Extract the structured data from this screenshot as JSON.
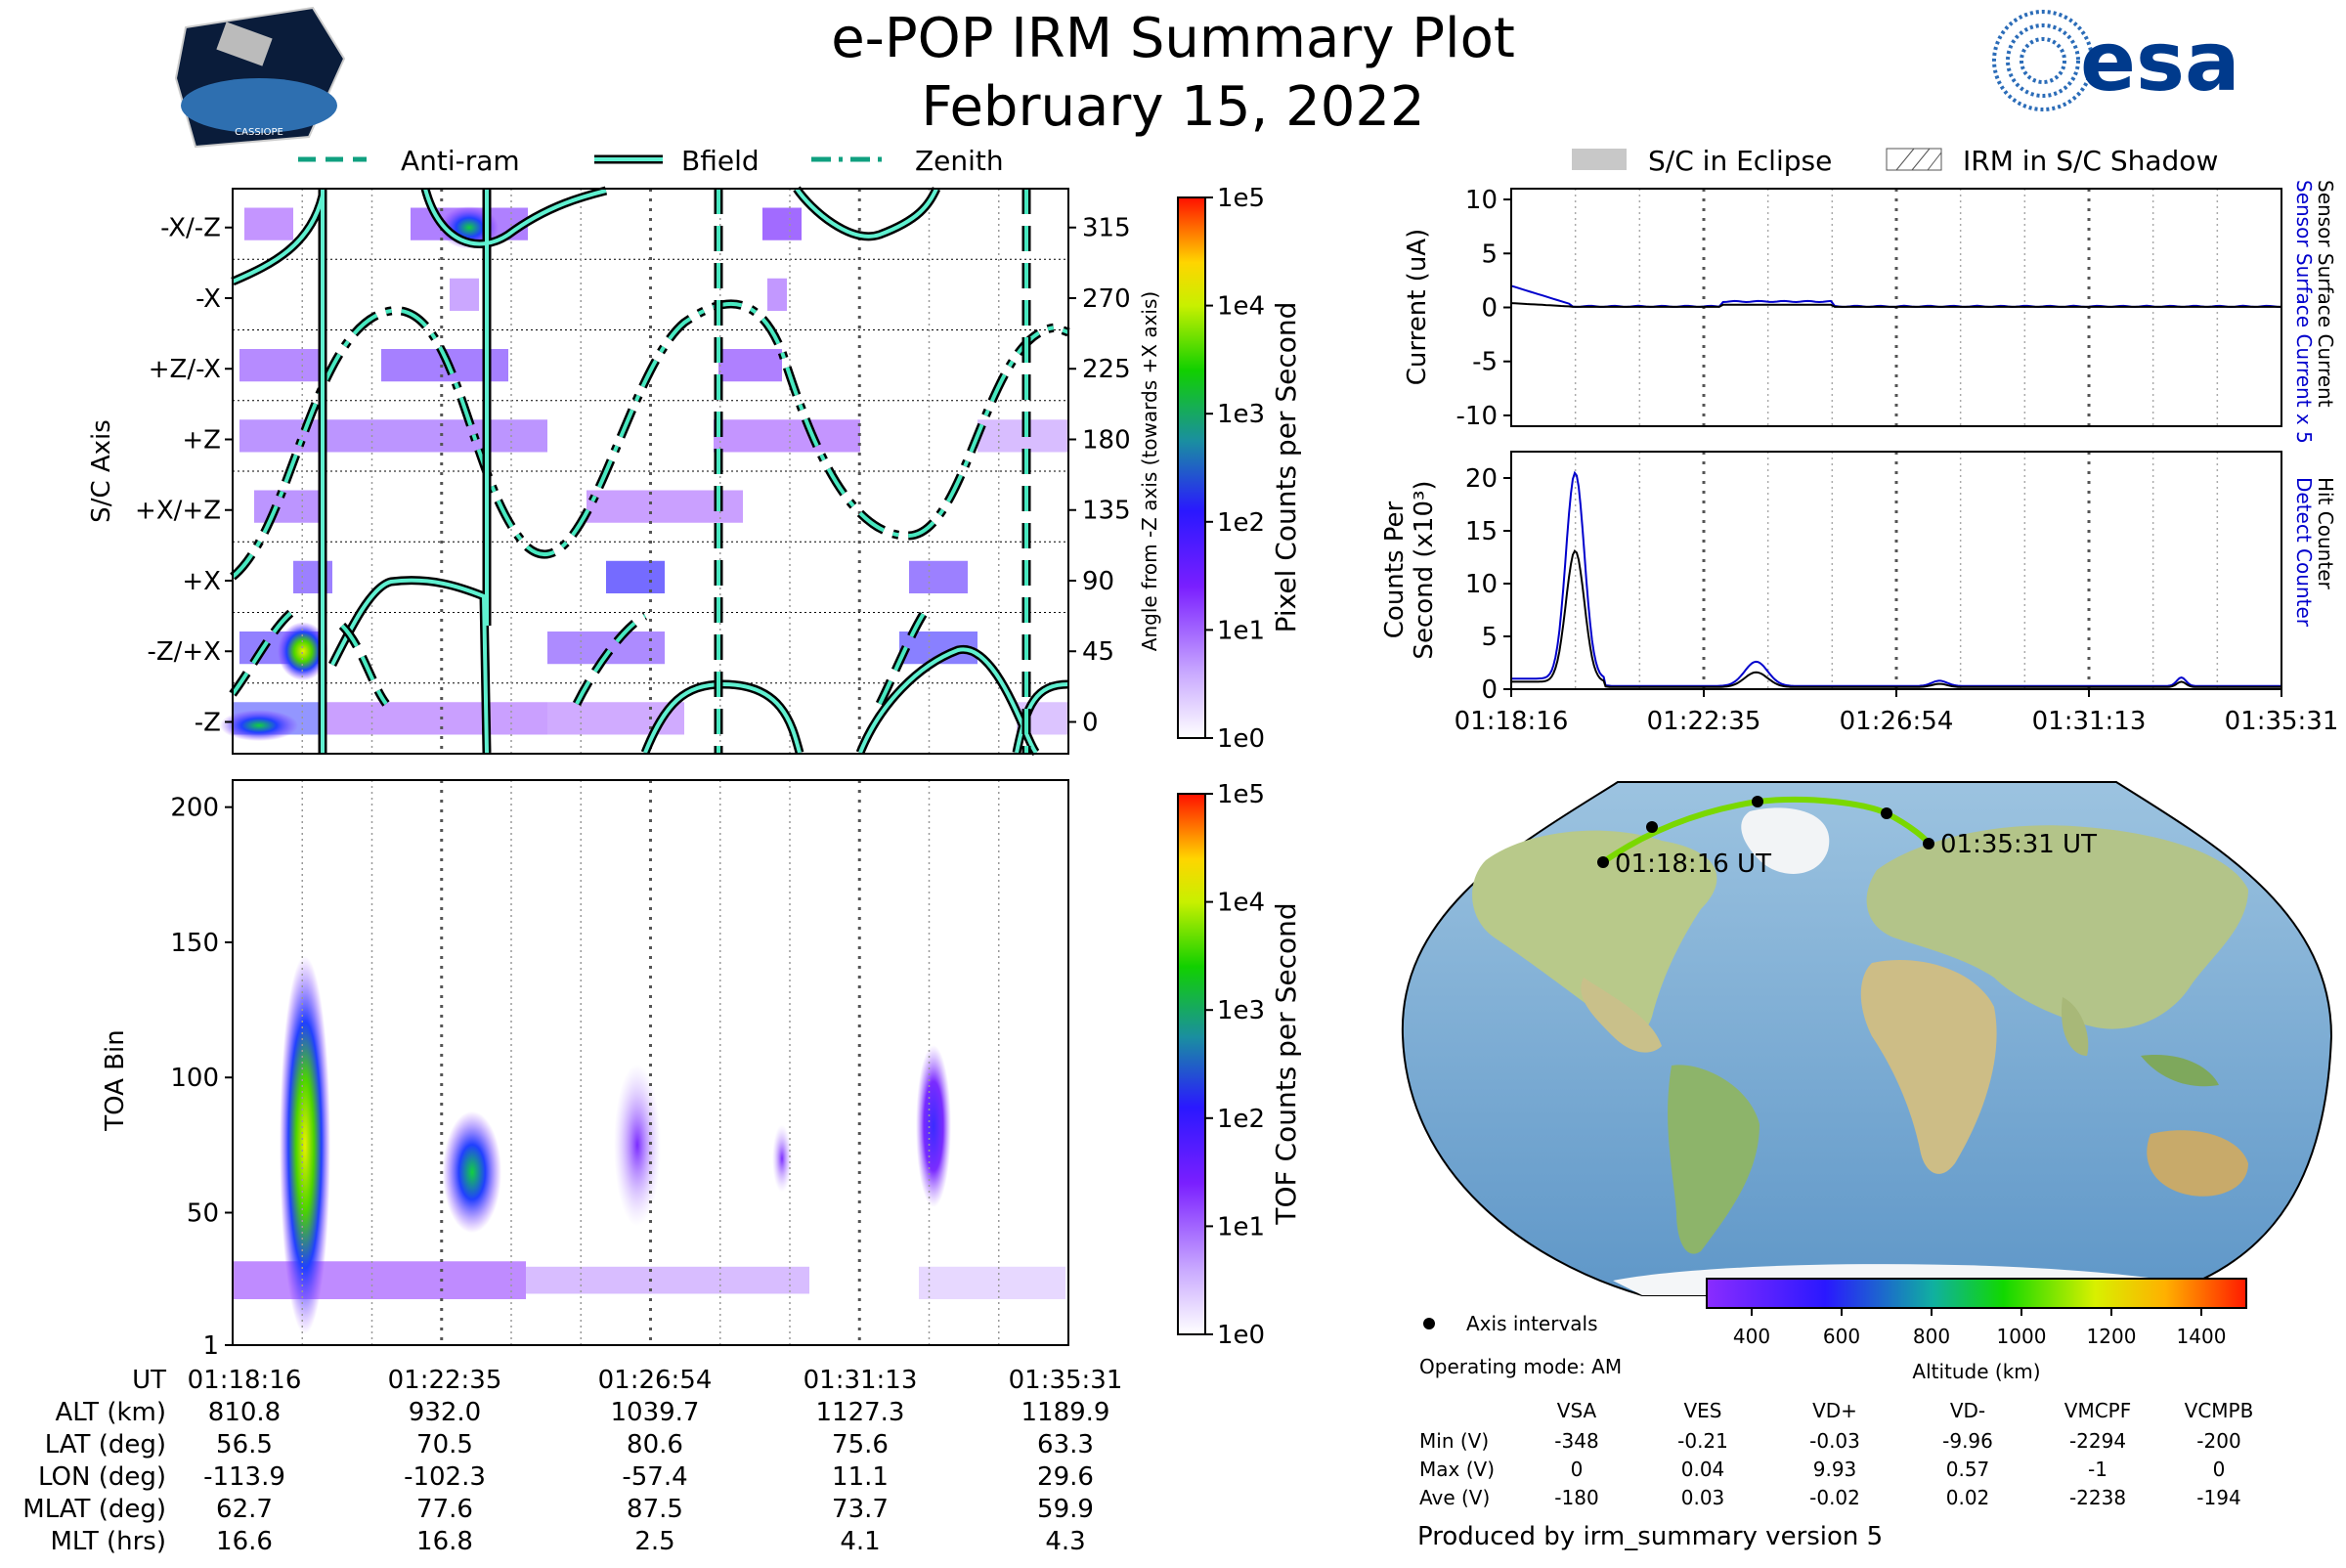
{
  "header": {
    "title": "e-POP IRM Summary Plot",
    "date": "February 15, 2022",
    "left_logo_text": "CASSIOPE",
    "right_logo_text": "esa"
  },
  "legend_top_left": [
    "Anti-ram",
    "Bfield",
    "Zenith"
  ],
  "legend_top_right": [
    "S/C in Eclipse",
    "IRM in S/C Shadow"
  ],
  "times": [
    "01:18:16",
    "01:22:35",
    "01:26:54",
    "01:31:13",
    "01:35:31"
  ],
  "chart_data": [
    {
      "id": "sc_axis_panel",
      "type": "heatmap",
      "ylabel": "S/C Axis",
      "y_categories": [
        "-X/-Z",
        "-X",
        "+Z/-X",
        "+Z",
        "+X/+Z",
        "+X",
        "-Z/+X",
        "-Z"
      ],
      "right_ylabel": "Angle from -Z axis (towards +X axis)",
      "right_ticks": [
        315,
        270,
        225,
        180,
        135,
        90,
        45,
        0
      ],
      "colorbar_label": "Pixel Counts per Second",
      "colorbar_ticks": [
        "1e5",
        "1e4",
        "1e3",
        "1e2",
        "1e1",
        "1e0"
      ],
      "xlim": [
        "01:18:16",
        "01:35:31"
      ]
    },
    {
      "id": "toa_panel",
      "type": "heatmap",
      "ylabel": "TOA Bin",
      "yticks": [
        1,
        50,
        100,
        150,
        200
      ],
      "ylim": [
        1,
        210
      ],
      "colorbar_label": "TOF Counts per Second",
      "colorbar_ticks": [
        "1e5",
        "1e4",
        "1e3",
        "1e2",
        "1e1",
        "1e0"
      ],
      "xlim": [
        "01:18:16",
        "01:35:31"
      ]
    },
    {
      "id": "current_panel",
      "type": "line",
      "ylabel": "Current (uA)",
      "yticks": [
        10,
        5,
        0,
        -5,
        -10
      ],
      "ylim": [
        -11,
        11
      ],
      "right_labels": [
        "Sensor Surface Current x 5",
        "Sensor Surface Current"
      ],
      "series": [
        {
          "name": "Sensor Surface Current x 5",
          "color": "#0000cc"
        },
        {
          "name": "Sensor Surface Current",
          "color": "#000000"
        }
      ]
    },
    {
      "id": "counts_panel",
      "type": "line",
      "ylabel": "Counts Per Second (x10³)",
      "yticks": [
        0,
        5,
        10,
        15,
        20
      ],
      "ylim": [
        0,
        22.5
      ],
      "right_labels": [
        "Detect Counter",
        "Hit Counter"
      ],
      "xticks": [
        "01:18:16",
        "01:22:35",
        "01:26:54",
        "01:31:13",
        "01:35:31"
      ],
      "series": [
        {
          "name": "Detect Counter",
          "color": "#0000cc"
        },
        {
          "name": "Hit Counter",
          "color": "#000000"
        }
      ]
    }
  ],
  "map": {
    "start_label": "01:18:16 UT",
    "end_label": "01:35:31 UT",
    "axis_intervals_label": "Axis intervals",
    "operating_mode": "Operating mode: AM",
    "altitude_label": "Altitude (km)",
    "altitude_ticks": [
      "400",
      "600",
      "800",
      "1000",
      "1200",
      "1400"
    ]
  },
  "ephemeris": {
    "labels": [
      "UT",
      "ALT (km)",
      "LAT (deg)",
      "LON (deg)",
      "MLAT (deg)",
      "MLT (hrs)"
    ],
    "columns": [
      [
        "01:18:16",
        "810.8",
        "56.5",
        "-113.9",
        "62.7",
        "16.6"
      ],
      [
        "01:22:35",
        "932.0",
        "70.5",
        "-102.3",
        "77.6",
        "16.8"
      ],
      [
        "01:26:54",
        "1039.7",
        "80.6",
        "-57.4",
        "87.5",
        "2.5"
      ],
      [
        "01:31:13",
        "1127.3",
        "75.6",
        "11.1",
        "73.7",
        "4.1"
      ],
      [
        "01:35:31",
        "1189.9",
        "63.3",
        "29.6",
        "59.9",
        "4.3"
      ]
    ]
  },
  "voltage_table": {
    "headers": [
      "VSA",
      "VES",
      "VD+",
      "VD-",
      "VMCPF",
      "VCMPB"
    ],
    "rows": [
      {
        "label": "Min (V)",
        "values": [
          "-348",
          "-0.21",
          "-0.03",
          "-9.96",
          "-2294",
          "-200"
        ]
      },
      {
        "label": "Max (V)",
        "values": [
          "0",
          "0.04",
          "9.93",
          "0.57",
          "-1",
          "0"
        ]
      },
      {
        "label": "Ave (V)",
        "values": [
          "-180",
          "0.03",
          "-0.02",
          "0.02",
          "-2238",
          "-194"
        ]
      }
    ]
  },
  "footer": "Produced by irm_summary version 5"
}
